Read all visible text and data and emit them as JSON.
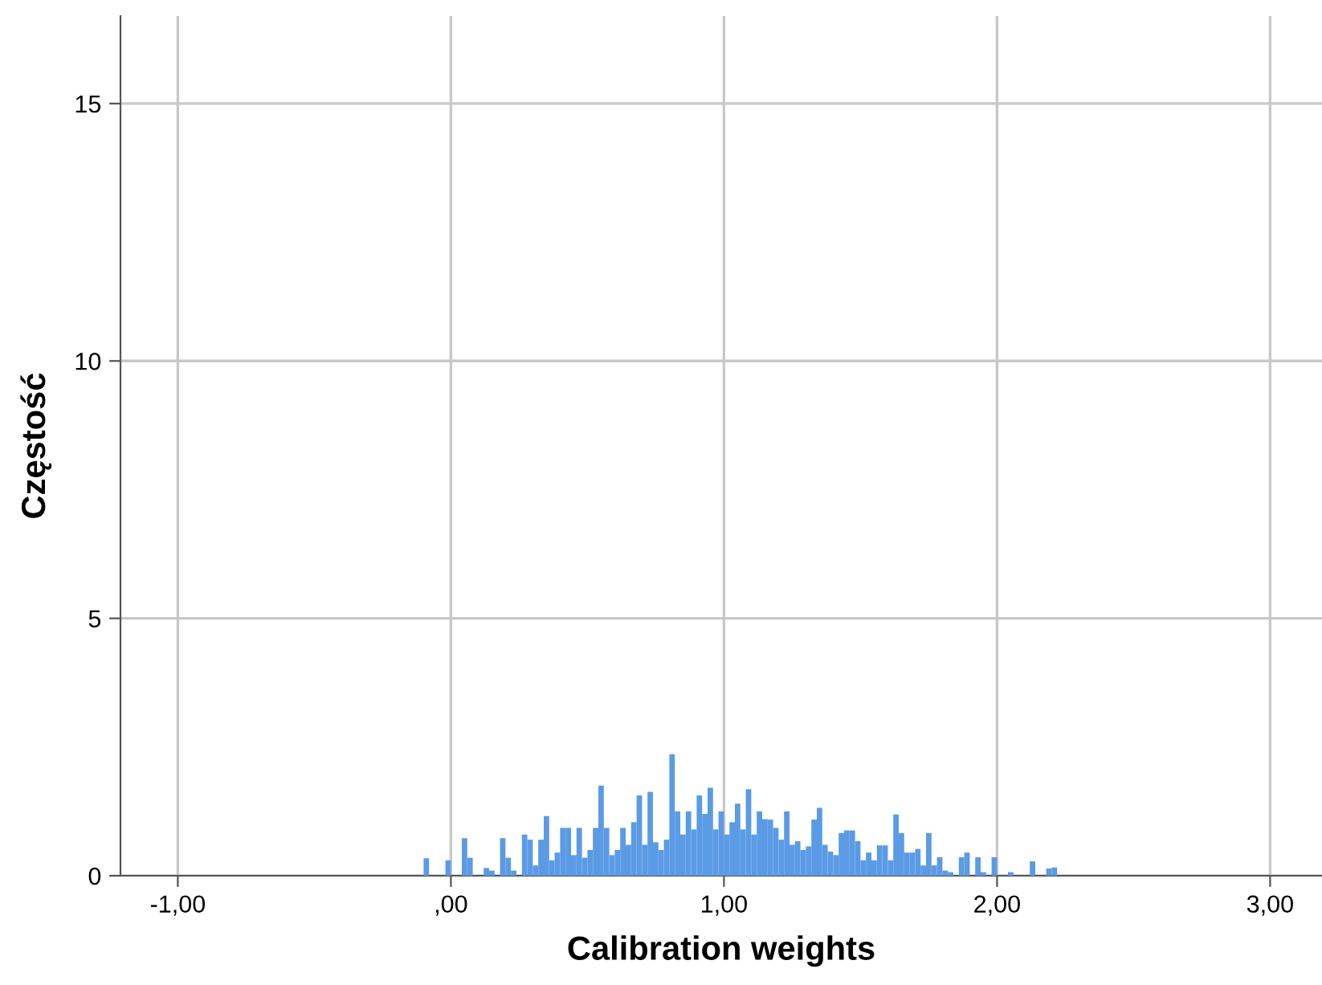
{
  "chart_data": {
    "type": "histogram",
    "xlabel": "Calibration weights",
    "ylabel": "Częstość",
    "bins": [
      -0.1,
      -0.08,
      -0.02,
      0.0,
      0.04,
      0.06,
      0.08,
      0.12,
      0.14,
      0.16,
      0.18,
      0.2,
      0.22,
      0.24,
      0.26,
      0.28,
      0.3,
      0.32,
      0.34,
      0.36,
      0.38,
      0.4,
      0.42,
      0.44,
      0.46,
      0.48,
      0.5,
      0.52,
      0.54,
      0.56,
      0.58,
      0.6,
      0.62,
      0.64,
      0.66,
      0.68,
      0.7,
      0.72,
      0.74,
      0.76,
      0.78,
      0.8,
      0.82,
      0.84,
      0.86,
      0.88,
      0.9,
      0.92,
      0.94,
      0.96,
      0.98,
      1.0,
      1.02,
      1.04,
      1.06,
      1.08,
      1.1,
      1.12,
      1.14,
      1.16,
      1.18,
      1.2,
      1.22,
      1.24,
      1.26,
      1.28,
      1.3,
      1.32,
      1.34,
      1.36,
      1.38,
      1.4,
      1.42,
      1.44,
      1.46,
      1.48,
      1.5,
      1.52,
      1.54,
      1.56,
      1.58,
      1.6,
      1.62,
      1.64,
      1.66,
      1.68,
      1.7,
      1.72,
      1.74,
      1.76,
      1.78,
      1.8,
      1.82,
      1.84,
      1.86,
      1.88,
      1.9,
      1.92,
      1.94,
      1.96,
      1.98,
      2.0,
      2.04,
      2.06,
      2.12,
      2.14,
      2.18,
      2.2,
      2.22
    ],
    "values": [
      0.34,
      0,
      0.3,
      0,
      0.73,
      0.35,
      0,
      0.15,
      0.1,
      0,
      0.73,
      0.35,
      0.1,
      0,
      0.8,
      0.7,
      0.2,
      0.7,
      1.16,
      0.3,
      0.45,
      0.93,
      0.93,
      0.4,
      0.93,
      0.35,
      0.5,
      0.93,
      1.75,
      0.93,
      0.4,
      0.5,
      0.93,
      0.6,
      1.04,
      1.56,
      0.6,
      1.63,
      0.65,
      0.5,
      0.7,
      2.36,
      1.25,
      0.8,
      1.25,
      0.9,
      1.56,
      1.2,
      1.71,
      0.9,
      1.25,
      0.8,
      1.04,
      1.4,
      0.9,
      1.68,
      0.8,
      1.25,
      1.1,
      1.09,
      0.93,
      0.7,
      1.25,
      0.6,
      0.67,
      0.5,
      0.57,
      1.09,
      1.32,
      0.6,
      0.47,
      0.4,
      0.83,
      0.88,
      0.88,
      0.67,
      0.3,
      0.45,
      0.3,
      0.59,
      0.59,
      0.3,
      1.19,
      0.83,
      0.45,
      0.45,
      0.52,
      0.2,
      0.83,
      0.2,
      0.36,
      0.1,
      0.07,
      0,
      0.36,
      0.45,
      0,
      0.36,
      0.07,
      0,
      0.36,
      0,
      0.07,
      0,
      0.28,
      0,
      0.14,
      0.16
    ],
    "color": "#5b9be6",
    "xlim": [
      -1.21,
      3.19
    ],
    "xticks": [
      {
        "value": -1,
        "label": "-1,00"
      },
      {
        "value": 0,
        "label": ",00"
      },
      {
        "value": 1,
        "label": "1,00"
      },
      {
        "value": 2,
        "label": "2,00"
      },
      {
        "value": 3,
        "label": "3,00"
      }
    ],
    "ylim": [
      0,
      16.7
    ],
    "yticks": [
      0,
      5,
      10,
      15
    ],
    "grid": true
  }
}
